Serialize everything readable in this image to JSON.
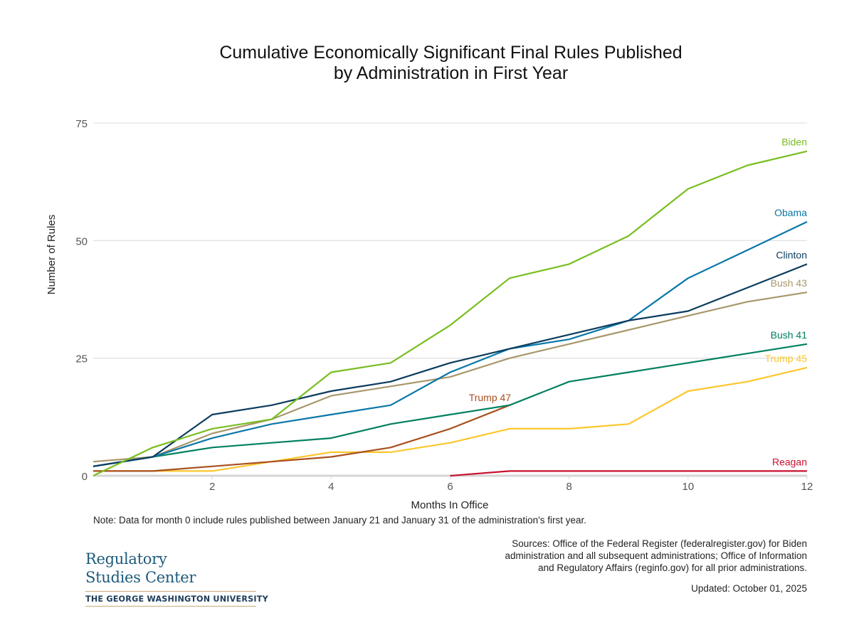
{
  "title_line1": "Cumulative Economically Significant Final Rules Published",
  "title_line2": "by Administration in First Year",
  "note": "Note: Data for month 0 include rules published between January 21 and January 31 of the administration's first year.",
  "sources_line1": "Sources: Office of the Federal Register (federalregister.gov) for Biden",
  "sources_line2": "administration and all subsequent administrations; Office of Information",
  "sources_line3": "and Regulatory Affairs (reginfo.gov) for all prior administrations.",
  "updated": "Updated: October 01, 2025",
  "logo": {
    "line1": "Regulatory",
    "line2": "Studies Center",
    "university": "THE GEORGE WASHINGTON UNIVERSITY"
  },
  "chart_data": {
    "type": "line",
    "title": "Cumulative Economically Significant Final Rules Published by Administration in First Year",
    "xlabel": "Months In Office",
    "ylabel": "Number of Rules",
    "xlim": [
      0,
      12
    ],
    "ylim": [
      0,
      75
    ],
    "xticks": [
      2,
      4,
      6,
      8,
      10,
      12
    ],
    "yticks": [
      0,
      25,
      50,
      75
    ],
    "grid": "horizontal",
    "legend": "direct labels at line ends (right)",
    "series": [
      {
        "name": "Biden",
        "color": "#78be20",
        "x": [
          0,
          1,
          2,
          3,
          4,
          5,
          6,
          7,
          8,
          9,
          10,
          11,
          12
        ],
        "values": [
          0,
          6,
          10,
          12,
          22,
          24,
          32,
          42,
          45,
          51,
          61,
          66,
          69
        ]
      },
      {
        "name": "Obama",
        "color": "#0a77a8",
        "x": [
          0,
          1,
          2,
          3,
          4,
          5,
          6,
          7,
          8,
          9,
          10,
          11,
          12
        ],
        "values": [
          2,
          4,
          8,
          11,
          13,
          15,
          22,
          27,
          29,
          33,
          42,
          48,
          54
        ]
      },
      {
        "name": "Clinton",
        "color": "#0b3c5d",
        "x": [
          0,
          1,
          2,
          3,
          4,
          5,
          6,
          7,
          8,
          9,
          10,
          11,
          12
        ],
        "values": [
          2,
          4,
          13,
          15,
          18,
          20,
          24,
          27,
          30,
          33,
          35,
          40,
          45
        ]
      },
      {
        "name": "Bush 43",
        "color": "#a8976b",
        "x": [
          0,
          1,
          2,
          3,
          4,
          5,
          6,
          7,
          8,
          9,
          10,
          11,
          12
        ],
        "values": [
          3,
          4,
          9,
          12,
          17,
          19,
          21,
          25,
          28,
          31,
          34,
          37,
          39
        ]
      },
      {
        "name": "Bush 41",
        "color": "#008060",
        "x": [
          0,
          1,
          2,
          3,
          4,
          5,
          6,
          7,
          8,
          9,
          10,
          11,
          12
        ],
        "values": [
          2,
          4,
          6,
          7,
          8,
          11,
          13,
          15,
          20,
          22,
          24,
          26,
          28
        ]
      },
      {
        "name": "Trump 45",
        "color": "#fcc72c",
        "x": [
          0,
          1,
          2,
          3,
          4,
          5,
          6,
          7,
          8,
          9,
          10,
          11,
          12
        ],
        "values": [
          1,
          1,
          1,
          3,
          5,
          5,
          7,
          10,
          10,
          11,
          18,
          20,
          23
        ]
      },
      {
        "name": "Trump 47",
        "color": "#a8501f",
        "x": [
          0,
          1,
          2,
          3,
          4,
          5,
          6,
          7
        ],
        "values": [
          1,
          1,
          2,
          3,
          4,
          6,
          10,
          15
        ]
      },
      {
        "name": "Reagan",
        "color": "#c8102e",
        "x": [
          6,
          7,
          8,
          9,
          10,
          11,
          12
        ],
        "values": [
          0,
          1,
          1,
          1,
          1,
          1,
          1
        ]
      }
    ]
  }
}
